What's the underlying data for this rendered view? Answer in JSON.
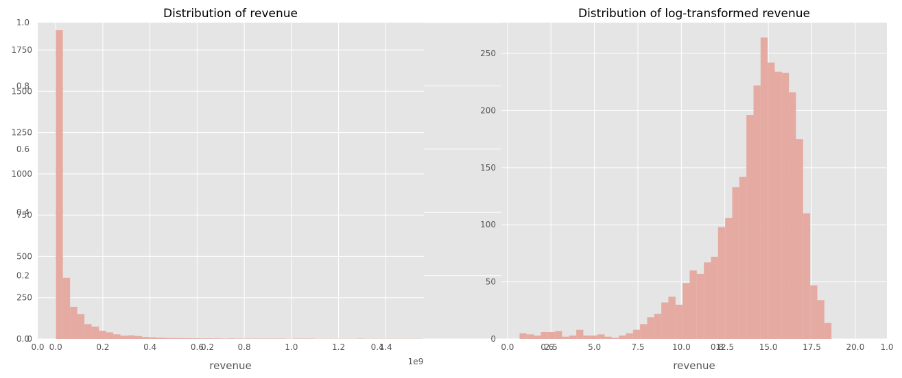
{
  "chart_data": [
    {
      "type": "bar",
      "title": "Distribution of revenue",
      "xlabel": "revenue",
      "x_offset_label": "1e9",
      "bar_color": "#E5A89E",
      "bin_start": 0,
      "bin_width": 0.0305,
      "values": [
        1870,
        370,
        195,
        150,
        90,
        75,
        50,
        40,
        28,
        20,
        22,
        18,
        12,
        10,
        8,
        6,
        5,
        5,
        4,
        4,
        3,
        3,
        3,
        2,
        3,
        2,
        2,
        2,
        2,
        2,
        2,
        2,
        1,
        2,
        2,
        2,
        1,
        1,
        1,
        1,
        1,
        1,
        2,
        1,
        1,
        1,
        1,
        1,
        1,
        1,
        1
      ],
      "xlim": [
        -0.0762,
        1.5621
      ],
      "ylim": [
        0,
        1916
      ],
      "yticks": [
        0,
        250,
        500,
        750,
        1000,
        1250,
        1500,
        1750
      ],
      "xticks": [
        0.0,
        0.2,
        0.4,
        0.6,
        0.8,
        1.0,
        1.2,
        1.4
      ],
      "x_tick_labels": [
        "0.0",
        "0.2",
        "0.4",
        "0.6",
        "0.8",
        "1.0",
        "1.2",
        "1.4"
      ],
      "grid": true
    },
    {
      "type": "bar",
      "title": "Distribution of log-transformed revenue",
      "xlabel": "revenue",
      "bar_color": "#E5A89E",
      "bin_start": 0.693,
      "bin_width": 0.4077,
      "values": [
        5,
        4,
        3,
        6,
        6,
        7,
        2,
        3,
        8,
        3,
        3,
        4,
        2,
        1,
        3,
        5,
        8,
        13,
        19,
        22,
        32,
        37,
        30,
        49,
        60,
        57,
        67,
        72,
        98,
        106,
        133,
        142,
        196,
        222,
        264,
        242,
        234,
        233,
        216,
        175,
        110,
        47,
        34,
        14
      ],
      "xlim": [
        -0.35,
        21.82
      ],
      "ylim": [
        0,
        277
      ],
      "yticks": [
        0,
        50,
        100,
        150,
        200,
        250
      ],
      "xticks": [
        0.0,
        2.5,
        5.0,
        7.5,
        10.0,
        12.5,
        15.0,
        17.5,
        20.0
      ],
      "x_tick_labels": [
        "0.0",
        "2.5",
        "5.0",
        "7.5",
        "10.0",
        "12.5",
        "15.0",
        "17.5",
        "20.0"
      ],
      "grid": true
    }
  ],
  "background_axes": {
    "xticks": [
      "0.0",
      "0.2",
      "0.4",
      "0.6",
      "0.8",
      "1.0"
    ],
    "yticks": [
      "0.0",
      "0.2",
      "0.4",
      "0.6",
      "0.8",
      "1.0"
    ],
    "grid": true
  }
}
